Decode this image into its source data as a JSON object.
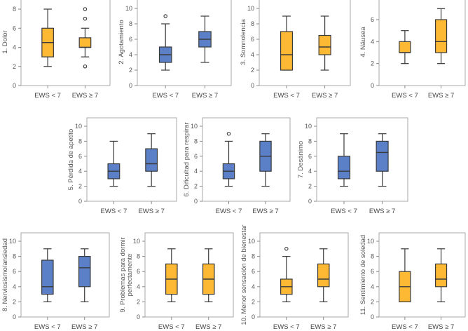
{
  "colors": {
    "orange": "#FDB933",
    "blue": "#5B80C8",
    "frame": "#aaaaaa",
    "line": "#3a3a3a"
  },
  "chart_data": [
    {
      "type": "box",
      "title": "1. Dolor",
      "ylabel": [
        "1. Dolor"
      ],
      "ylim": [
        0,
        9
      ],
      "yticks": [
        0,
        2,
        4,
        6,
        8
      ],
      "color": "orange",
      "categories": [
        "EWS < 7",
        "EWS ≥ 7"
      ],
      "boxes": [
        {
          "min": 2,
          "q1": 3,
          "median": 4.5,
          "q3": 6,
          "max": 8,
          "outliers": []
        },
        {
          "min": 3,
          "q1": 4,
          "median": 4,
          "q3": 5,
          "max": 6,
          "outliers": [
            8,
            7,
            2
          ]
        }
      ]
    },
    {
      "type": "box",
      "title": "2. Agotamiento",
      "ylabel": [
        "2. Agotamiento"
      ],
      "ylim": [
        0,
        11
      ],
      "yticks": [
        0,
        2,
        4,
        6,
        8,
        10
      ],
      "color": "blue",
      "categories": [
        "EWS < 7",
        "EWS ≥ 7"
      ],
      "boxes": [
        {
          "min": 2,
          "q1": 3,
          "median": 4,
          "q3": 5,
          "max": 8,
          "outliers": [
            9
          ]
        },
        {
          "min": 3,
          "q1": 5,
          "median": 6,
          "q3": 7,
          "max": 9,
          "outliers": []
        }
      ]
    },
    {
      "type": "box",
      "title": "3. Somnolencia",
      "ylabel": [
        "3. Somnolencia"
      ],
      "ylim": [
        0,
        11
      ],
      "yticks": [
        0,
        2,
        4,
        6,
        8,
        10
      ],
      "color": "orange",
      "categories": [
        "EWS < 7",
        "EWS ≥ 7"
      ],
      "boxes": [
        {
          "min": 2,
          "q1": 2,
          "median": 4,
          "q3": 7,
          "max": 9,
          "outliers": []
        },
        {
          "min": 2,
          "q1": 4,
          "median": 5,
          "q3": 6.5,
          "max": 9,
          "outliers": []
        }
      ]
    },
    {
      "type": "box",
      "title": "4. Náusea",
      "ylabel": [
        "4. Náusea"
      ],
      "ylim": [
        0,
        7.8
      ],
      "yticks": [
        0,
        2,
        4,
        6
      ],
      "color": "orange",
      "categories": [
        "EWS < 7",
        "EWS ≥ 7"
      ],
      "boxes": [
        {
          "min": 2,
          "q1": 3,
          "median": 3,
          "q3": 4,
          "max": 5,
          "outliers": []
        },
        {
          "min": 2,
          "q1": 3,
          "median": 4,
          "q3": 6,
          "max": 7,
          "outliers": []
        }
      ]
    },
    {
      "type": "box",
      "title": "5. Pérdida de apetito",
      "ylabel": [
        "5. Pérdida de apetito"
      ],
      "ylim": [
        0,
        11
      ],
      "yticks": [
        0,
        2,
        4,
        6,
        8,
        10
      ],
      "color": "blue",
      "categories": [
        "EWS < 7",
        "EWS ≥ 7"
      ],
      "boxes": [
        {
          "min": 2,
          "q1": 3,
          "median": 4,
          "q3": 5,
          "max": 8,
          "outliers": []
        },
        {
          "min": 2,
          "q1": 4,
          "median": 5,
          "q3": 7,
          "max": 9,
          "outliers": []
        }
      ]
    },
    {
      "type": "box",
      "title": "6. Dificultad para respirar",
      "ylabel": [
        "6. Dificultad para respirar"
      ],
      "ylim": [
        0,
        11
      ],
      "yticks": [
        0,
        2,
        4,
        6,
        8,
        10
      ],
      "color": "blue",
      "categories": [
        "EWS < 7",
        "EWS ≥ 7"
      ],
      "boxes": [
        {
          "min": 2,
          "q1": 3,
          "median": 4,
          "q3": 5,
          "max": 8,
          "outliers": [
            9
          ]
        },
        {
          "min": 2,
          "q1": 4,
          "median": 6,
          "q3": 8,
          "max": 9,
          "outliers": []
        }
      ]
    },
    {
      "type": "box",
      "title": "7. Desánimo",
      "ylabel": [
        "7. Desánimo"
      ],
      "ylim": [
        0,
        11
      ],
      "yticks": [
        0,
        2,
        4,
        6,
        8,
        10
      ],
      "color": "blue",
      "categories": [
        "EWS < 7",
        "EWS ≥ 7"
      ],
      "boxes": [
        {
          "min": 2,
          "q1": 3,
          "median": 4,
          "q3": 6,
          "max": 9,
          "outliers": []
        },
        {
          "min": 2,
          "q1": 4,
          "median": 6.5,
          "q3": 8,
          "max": 9,
          "outliers": []
        }
      ]
    },
    {
      "type": "box",
      "title": "8. Nerviosismo/ansiedad",
      "ylabel": [
        "8. Nerviosismo/ansiedad"
      ],
      "ylim": [
        0,
        11
      ],
      "yticks": [
        0,
        2,
        4,
        6,
        8,
        10
      ],
      "color": "blue",
      "categories": [
        "EWS < 7",
        "EWS ≥ 7"
      ],
      "boxes": [
        {
          "min": 2,
          "q1": 3,
          "median": 4,
          "q3": 7.5,
          "max": 9,
          "outliers": []
        },
        {
          "min": 2,
          "q1": 4,
          "median": 6.5,
          "q3": 8,
          "max": 9,
          "outliers": []
        }
      ]
    },
    {
      "type": "box",
      "title": "9. Problemas para dormir perfectamente",
      "ylabel": [
        "9. Problemas para dormir",
        "perfectamente"
      ],
      "ylim": [
        0,
        11
      ],
      "yticks": [
        0,
        2,
        4,
        6,
        8,
        10
      ],
      "color": "orange",
      "categories": [
        "EWS < 7",
        "EWS ≥ 7"
      ],
      "boxes": [
        {
          "min": 2,
          "q1": 3,
          "median": 5,
          "q3": 7,
          "max": 9,
          "outliers": []
        },
        {
          "min": 2,
          "q1": 3,
          "median": 5,
          "q3": 7,
          "max": 9,
          "outliers": []
        }
      ]
    },
    {
      "type": "box",
      "title": "10. Menor sensación de bienestar",
      "ylabel": [
        "10. Menor sensación de bienestar"
      ],
      "ylim": [
        0,
        11
      ],
      "yticks": [
        0,
        2,
        4,
        6,
        8,
        10
      ],
      "color": "orange",
      "categories": [
        "EWS < 7",
        "EWS ≥ 7"
      ],
      "boxes": [
        {
          "min": 2,
          "q1": 3,
          "median": 4,
          "q3": 5,
          "max": 8,
          "outliers": [
            9
          ]
        },
        {
          "min": 2,
          "q1": 4,
          "median": 5,
          "q3": 7,
          "max": 9,
          "outliers": []
        }
      ]
    },
    {
      "type": "box",
      "title": "11. Sentimiento de soledad",
      "ylabel": [
        "11. Sentimiento de soledad"
      ],
      "ylim": [
        0,
        11
      ],
      "yticks": [
        0,
        2,
        4,
        6,
        8,
        10
      ],
      "color": "orange",
      "categories": [
        "EWS < 7",
        "EWS ≥ 7"
      ],
      "boxes": [
        {
          "min": 2,
          "q1": 2,
          "median": 4,
          "q3": 6,
          "max": 9,
          "outliers": []
        },
        {
          "min": 2,
          "q1": 4,
          "median": 5,
          "q3": 7,
          "max": 9,
          "outliers": []
        }
      ]
    }
  ]
}
